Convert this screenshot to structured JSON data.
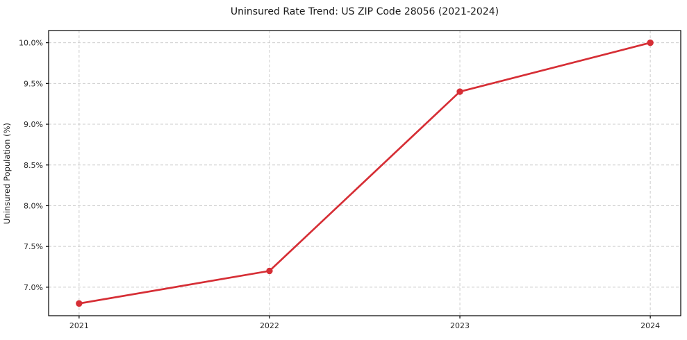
{
  "title": "Uninsured Rate Trend: US ZIP Code 28056 (2021-2024)",
  "chart_data": {
    "type": "line",
    "title": "Uninsured Rate Trend: US ZIP Code 28056 (2021-2024)",
    "xlabel": "",
    "ylabel": "Uninsured Population (%)",
    "x": [
      2021,
      2022,
      2023,
      2024
    ],
    "x_tick_labels": [
      "2021",
      "2022",
      "2023",
      "2024"
    ],
    "values": [
      6.8,
      7.2,
      9.4,
      10.0
    ],
    "yticks": [
      7.0,
      7.5,
      8.0,
      8.5,
      9.0,
      9.5,
      10.0
    ],
    "ytick_labels": [
      "7.0%",
      "7.5%",
      "8.0%",
      "8.5%",
      "9.0%",
      "9.5%",
      "10.0%"
    ],
    "xlim": [
      2020.84,
      2024.16
    ],
    "ylim": [
      6.65,
      10.15
    ],
    "grid": true,
    "grid_style": "dashed",
    "legend": false,
    "line_color": "#d62e35",
    "marker": "circle",
    "grid_color": "#cccccc",
    "spine_color": "#000000",
    "background_color": "#ffffff"
  }
}
